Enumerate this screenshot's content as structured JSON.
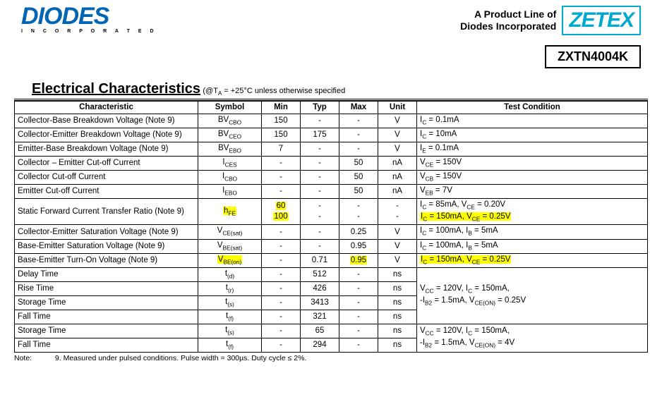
{
  "header": {
    "diodes_logo": "DIODES",
    "diodes_sub": "I N C O R P O R A T E D",
    "tagline_l1": "A Product Line of",
    "tagline_l2": "Diodes Incorporated",
    "zetex": "ZETEX",
    "part_number": "ZXTN4004K"
  },
  "section": {
    "title": "Electrical Characteristics",
    "condition_prefix": "(@T",
    "condition_sub": "A",
    "condition_suffix": " = +25°C unless otherwise specified"
  },
  "columns": {
    "char": "Characteristic",
    "sym": "Symbol",
    "min": "Min",
    "typ": "Typ",
    "max": "Max",
    "unit": "Unit",
    "cond": "Test Condition"
  },
  "rows": [
    {
      "char": "Collector-Base Breakdown Voltage (Note 9)",
      "sym": "BV<sub>CBO</sub>",
      "min": "150",
      "typ": "-",
      "max": "-",
      "unit": "V",
      "cond": "I<sub>C</sub> = 0.1mA"
    },
    {
      "char": "Collector-Emitter Breakdown Voltage (Note 9)",
      "sym": "BV<sub>CEO</sub>",
      "min": "150",
      "typ": "175",
      "max": "-",
      "unit": "V",
      "cond": "I<sub>C</sub> = 10mA"
    },
    {
      "char": "Emitter-Base Breakdown Voltage (Note 9)",
      "sym": "BV<sub>EBO</sub>",
      "min": "7",
      "typ": "-",
      "max": "-",
      "unit": "V",
      "cond": "I<sub>E</sub> = 0.1mA"
    },
    {
      "char": "Collector – Emitter Cut-off Current",
      "sym": "I<sub>CES</sub>",
      "min": "-",
      "typ": "-",
      "max": "50",
      "unit": "nA",
      "cond": "V<sub>CE</sub> = 150V"
    },
    {
      "char": "Collector Cut-off Current",
      "sym": "I<sub>CBO</sub>",
      "min": "-",
      "typ": "-",
      "max": "50",
      "unit": "nA",
      "cond": "V<sub>CB</sub> = 150V"
    },
    {
      "char": "Emitter Cut-off Current",
      "sym": "I<sub>EBO</sub>",
      "min": "-",
      "typ": "-",
      "max": "50",
      "unit": "nA",
      "cond": "V<sub>EB</sub> = 7V"
    }
  ],
  "hfe": {
    "char": "Static Forward Current Transfer Ratio (Note 9)",
    "sym": "h<sub>FE</sub>",
    "min1": "60",
    "min2": "100",
    "typ": "-",
    "max": "-",
    "unit": "-",
    "cond1": "I<sub>C</sub> = 85mA, V<sub>CE</sub> = 0.20V",
    "cond2": "I<sub>C</sub> = 150mA, V<sub>CE</sub> = 0.25V"
  },
  "rows2": [
    {
      "char": "Collector-Emitter Saturation Voltage (Note 9)",
      "sym": "V<sub>CE(sat)</sub>",
      "min": "-",
      "typ": "-",
      "max": "0.25",
      "unit": "V",
      "cond": "I<sub>C</sub> = 100mA, I<sub>B</sub> = 5mA"
    },
    {
      "char": "Base-Emitter Saturation Voltage (Note 9)",
      "sym": "V<sub>BE(sat)</sub>",
      "min": "-",
      "typ": "-",
      "max": "0.95",
      "unit": "V",
      "cond": "I<sub>C</sub> = 100mA, I<sub>B</sub> = 5mA"
    }
  ],
  "vbeon": {
    "char": "Base-Emitter Turn-On Voltage (Note 9)",
    "sym": "V<sub>BE(on)</sub>",
    "min": "-",
    "typ": "0.71",
    "max": "0.95",
    "unit": "V",
    "cond": "I<sub>C</sub> = 150mA, V<sub>CE</sub> = 0.25V"
  },
  "rows3": [
    {
      "char": "Delay Time",
      "sym": "t<sub>(d)</sub>",
      "min": "-",
      "typ": "512",
      "max": "-",
      "unit": "ns",
      "cond": "",
      "rs": "4",
      "condg": "V<sub>CC</sub> = 120V, I<sub>C</sub> = 150mA,<br>-I<sub>B2</sub> = 1.5mA, V<sub>CE(ON)</sub> = 0.25V"
    },
    {
      "char": "Rise Time",
      "sym": "t<sub>(r)</sub>",
      "min": "-",
      "typ": "426",
      "max": "-",
      "unit": "ns"
    },
    {
      "char": "Storage Time",
      "sym": "t<sub>(s)</sub>",
      "min": "-",
      "typ": "3413",
      "max": "-",
      "unit": "ns"
    },
    {
      "char": "Fall Time",
      "sym": "t<sub>(f)</sub>",
      "min": "-",
      "typ": "321",
      "max": "-",
      "unit": "ns"
    },
    {
      "char": "Storage Time",
      "sym": "t<sub>(s)</sub>",
      "min": "-",
      "typ": "65",
      "max": "-",
      "unit": "ns",
      "rs": "2",
      "condg": "V<sub>CC</sub> = 120V, I<sub>C</sub> = 150mA,<br>-I<sub>B2</sub> = 1.5mA, V<sub>CE(ON)</sub> = 4V"
    },
    {
      "char": "Fall Time",
      "sym": "t<sub>(f)</sub>",
      "min": "-",
      "typ": "294",
      "max": "-",
      "unit": "ns"
    }
  ],
  "note": {
    "label": "Note:",
    "text": "9. Measured under pulsed conditions. Pulse width = 300µs. Duty cycle ≤ 2%."
  },
  "style": {
    "highlight_color": "#ffff00",
    "diodes_blue": "#0066b3",
    "zetex_teal": "#00a9ce"
  }
}
